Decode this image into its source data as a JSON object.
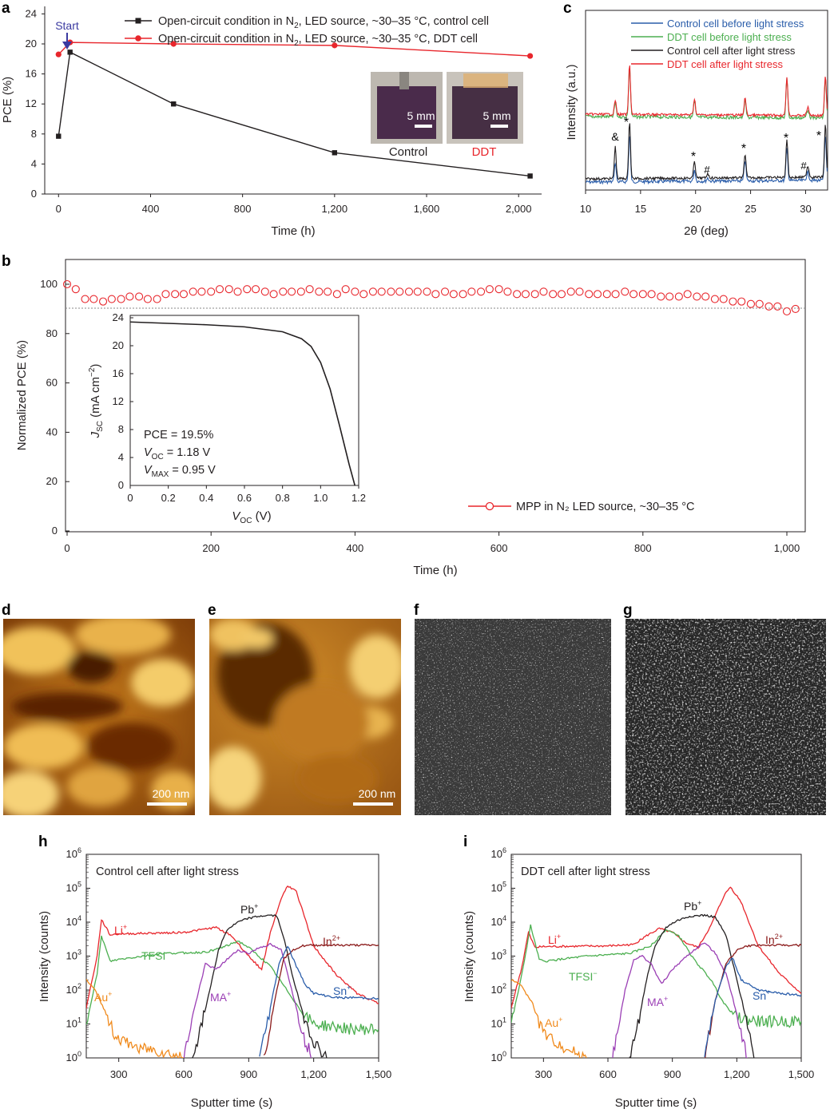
{
  "panel_labels": {
    "a": "a",
    "b": "b",
    "c": "c",
    "d": "d",
    "e": "e",
    "f": "f",
    "g": "g",
    "h": "h",
    "i": "i"
  },
  "colors": {
    "black": "#231f20",
    "red": "#e8262c",
    "blue": "#2a5daa",
    "green": "#4caf50",
    "purple": "#9b3fb5",
    "orange": "#f08a1c",
    "darkred": "#8b1a1a",
    "start": "#3b3aa0"
  },
  "panel_a": {
    "ylabel": "PCE (%)",
    "xlabel": "Time (h)",
    "xticks": [
      "0",
      "400",
      "800",
      "1,200",
      "1,600",
      "2,000"
    ],
    "yticks": [
      "0",
      "4",
      "8",
      "12",
      "16",
      "20",
      "24"
    ],
    "start_label": "Start",
    "legend": [
      {
        "prefix": "Open-circuit condition in N",
        "sub": "2",
        "suffix": ", LED source, ~30–35 °C, control cell"
      },
      {
        "prefix": "Open-circuit condition in N",
        "sub": "2",
        "suffix": ", LED source, ~30–35 °C, DDT cell"
      }
    ],
    "photos": [
      {
        "scale": "5 mm",
        "label": "Control"
      },
      {
        "scale": "5 mm",
        "label": "DDT"
      }
    ]
  },
  "panel_b": {
    "ylabel": "Normalized PCE (%)",
    "xlabel": "Time (h)",
    "xticks": [
      "0",
      "200",
      "400",
      "600",
      "800",
      "1,000"
    ],
    "yticks": [
      "0",
      "20",
      "40",
      "60",
      "80",
      "100"
    ],
    "legend": "MPP in N₂ LED source, ~30–35 °C",
    "inset": {
      "xticks": [
        "0",
        "0.2",
        "0.4",
        "0.6",
        "0.8",
        "1.0",
        "1.2"
      ],
      "yticks": [
        "0",
        "4",
        "8",
        "12",
        "16",
        "20",
        "24"
      ],
      "ylabel_main": "J",
      "ylabel_sub": "SC",
      "ylabel_unit": " (mA cm",
      "xlabel_main": "V",
      "xlabel_sub": "OC",
      "xlabel_unit": " (V)",
      "pce": "PCE = 19.5%",
      "voc_main": "V",
      "voc_sub": "OC",
      "voc_val": " = 1.18 V",
      "vmax_main": "V",
      "vmax_sub": "MAX",
      "vmax_val": " = 0.95 V"
    }
  },
  "panel_c": {
    "ylabel": "Intensity (a.u.)",
    "xlabel": "2θ (deg)",
    "xticks": [
      "10",
      "15",
      "20",
      "25",
      "30"
    ],
    "legend": [
      "Control cell before light stress",
      "DDT cell before light stress",
      "Control cell after light stress",
      "DDT cell after light stress"
    ],
    "markers": [
      "&",
      "*",
      "*",
      "#",
      "*",
      "*",
      "#",
      "*"
    ]
  },
  "afm": {
    "d_scale": "200 nm",
    "e_scale": "200 nm"
  },
  "panel_h": {
    "title": "Control cell after light stress",
    "ylabel": "Intensity (counts)",
    "xlabel": "Sputter time (s)",
    "xticks": [
      "300",
      "600",
      "900",
      "1,200",
      "1,500"
    ],
    "ions": {
      "li": "Li",
      "tfsi": "TFSI",
      "au": "Au",
      "ma": "MA",
      "pb": "Pb",
      "in": "In",
      "sn": "Sn"
    }
  },
  "panel_i": {
    "title": "DDT cell after light stress",
    "ylabel": "Intensity (counts)",
    "xlabel": "Sputter time (s)",
    "xticks": [
      "300",
      "600",
      "900",
      "1,200",
      "1,500"
    ],
    "ions": {
      "li": "Li",
      "tfsi": "TFSI",
      "au": "Au",
      "ma": "MA",
      "pb": "Pb",
      "in": "In",
      "sn": "Sn"
    }
  },
  "chart_data": [
    {
      "panel": "a",
      "type": "line",
      "xlabel": "Time (h)",
      "ylabel": "PCE (%)",
      "xlim": [
        -60,
        2100
      ],
      "ylim": [
        0,
        25
      ],
      "series": [
        {
          "name": "Open-circuit condition in N2, LED source, ~30–35 °C, control cell",
          "color": "#231f20",
          "marker": "square",
          "x": [
            0,
            50,
            500,
            1200,
            2050
          ],
          "y": [
            7.7,
            18.9,
            12.0,
            5.5,
            2.4
          ]
        },
        {
          "name": "Open-circuit condition in N2, LED source, ~30–35 °C, DDT cell",
          "color": "#e8262c",
          "marker": "circle",
          "x": [
            0,
            50,
            500,
            1200,
            2050
          ],
          "y": [
            18.6,
            20.2,
            20.0,
            19.8,
            18.4
          ]
        }
      ]
    },
    {
      "panel": "b",
      "type": "scatter",
      "xlabel": "Time (h)",
      "ylabel": "Normalized PCE (%)",
      "xlim": [
        -5,
        1050
      ],
      "ylim": [
        0,
        107
      ],
      "reference_line": 90,
      "series": [
        {
          "name": "MPP in N2 LED source, ~30–35 °C",
          "color": "#e8262c",
          "marker": "open-circle",
          "x": [
            0,
            12,
            25,
            37,
            50,
            62,
            75,
            87,
            100,
            112,
            125,
            137,
            150,
            162,
            175,
            187,
            200,
            212,
            225,
            237,
            250,
            262,
            275,
            287,
            300,
            312,
            325,
            337,
            350,
            362,
            375,
            387,
            400,
            412,
            425,
            437,
            450,
            462,
            475,
            487,
            500,
            512,
            525,
            537,
            550,
            562,
            575,
            587,
            600,
            612,
            625,
            637,
            650,
            662,
            675,
            687,
            700,
            712,
            725,
            737,
            750,
            762,
            775,
            787,
            800,
            812,
            825,
            837,
            850,
            862,
            875,
            887,
            900,
            912,
            925,
            937,
            950,
            962,
            975,
            987,
            1000,
            1012
          ],
          "y": [
            100,
            98,
            94,
            94,
            93,
            94,
            94,
            95,
            95,
            94,
            94,
            96,
            96,
            96,
            97,
            97,
            97,
            98,
            98,
            97,
            98,
            98,
            97,
            96,
            97,
            97,
            97,
            98,
            97,
            97,
            96,
            98,
            97,
            96,
            97,
            97,
            97,
            97,
            97,
            97,
            97,
            96,
            97,
            96,
            96,
            97,
            97,
            98,
            98,
            97,
            96,
            96,
            96,
            97,
            96,
            96,
            97,
            97,
            96,
            96,
            96,
            96,
            97,
            96,
            96,
            96,
            95,
            95,
            95,
            96,
            95,
            95,
            94,
            94,
            93,
            93,
            92,
            92,
            91,
            91,
            89,
            90
          ]
        }
      ],
      "inset": {
        "type": "line",
        "xlabel": "V_OC (V)",
        "ylabel": "J_SC (mA cm^-2)",
        "xlim": [
          0,
          1.2
        ],
        "ylim": [
          0,
          24
        ],
        "series": [
          {
            "name": "J-V",
            "x": [
              0,
              0.2,
              0.4,
              0.6,
              0.8,
              0.9,
              0.95,
              1.0,
              1.05,
              1.1,
              1.15,
              1.18
            ],
            "y": [
              23.4,
              23.2,
              23.0,
              22.7,
              22.0,
              21.0,
              19.9,
              17.6,
              13.8,
              8.5,
              3.0,
              0
            ]
          }
        ],
        "annotations": [
          "PCE = 19.5%",
          "V_OC = 1.18 V",
          "V_MAX = 0.95 V"
        ]
      }
    },
    {
      "panel": "c",
      "type": "line",
      "xlabel": "2θ (deg)",
      "ylabel": "Intensity (a.u.)",
      "xlim": [
        10,
        32
      ],
      "peaks": [
        12.7,
        14.0,
        19.9,
        21.1,
        24.5,
        28.3,
        30.2,
        31.8
      ],
      "series": [
        {
          "name": "Control cell before light stress",
          "color": "#2a5daa"
        },
        {
          "name": "DDT cell before light stress",
          "color": "#4caf50"
        },
        {
          "name": "Control cell after light stress",
          "color": "#231f20"
        },
        {
          "name": "DDT cell after light stress",
          "color": "#e8262c"
        }
      ]
    },
    {
      "panel": "h",
      "type": "line",
      "title": "Control cell after light stress",
      "xlabel": "Sputter time (s)",
      "ylabel": "Intensity (counts)",
      "xlim": [
        150,
        1500
      ],
      "ylim": [
        1,
        1000000
      ],
      "yscale": "log",
      "series": [
        {
          "name": "Li+",
          "color": "#e8262c",
          "x": [
            150,
            200,
            220,
            260,
            300,
            600,
            750,
            820,
            900,
            960,
            1000,
            1050,
            1080,
            1120,
            1200,
            1300,
            1400,
            1500
          ],
          "y": [
            30,
            1000,
            12000,
            4200,
            4500,
            5000,
            7000,
            4000,
            1000,
            400,
            5000,
            50000,
            120000,
            80000,
            2000,
            300,
            80,
            40
          ]
        },
        {
          "name": "TFSI-",
          "color": "#4caf50",
          "x": [
            150,
            200,
            220,
            260,
            300,
            500,
            700,
            800,
            850,
            900,
            1000,
            1100,
            1150,
            1200,
            1300,
            1400,
            1500
          ],
          "y": [
            10,
            300,
            4000,
            700,
            800,
            1200,
            1300,
            2000,
            2800,
            1800,
            500,
            60,
            20,
            10,
            8,
            7,
            7
          ]
        },
        {
          "name": "Pb+",
          "color": "#231f20",
          "x": [
            640,
            680,
            720,
            760,
            800,
            850,
            900,
            950,
            1000,
            1030,
            1060,
            1100,
            1150,
            1200,
            1260
          ],
          "y": [
            1,
            8,
            100,
            1500,
            6000,
            10000,
            13000,
            15000,
            16000,
            15000,
            4000,
            300,
            20,
            3,
            1
          ]
        },
        {
          "name": "MA+",
          "color": "#9b3fb5",
          "x": [
            600,
            650,
            700,
            750,
            800,
            850,
            900,
            950,
            1000,
            1050,
            1080,
            1120,
            1160,
            1200
          ],
          "y": [
            1,
            30,
            600,
            400,
            800,
            1500,
            1200,
            1800,
            2200,
            1500,
            300,
            30,
            3,
            1
          ]
        },
        {
          "name": "In2+",
          "color": "#8b1a1a",
          "x": [
            970,
            1000,
            1030,
            1060,
            1100,
            1150,
            1200,
            1300,
            1400,
            1500
          ],
          "y": [
            1,
            10,
            100,
            800,
            1500,
            2000,
            2100,
            2100,
            2100,
            2100
          ]
        },
        {
          "name": "Sn+",
          "color": "#2a5daa",
          "x": [
            950,
            1000,
            1040,
            1080,
            1120,
            1160,
            1200,
            1300,
            1400,
            1500
          ],
          "y": [
            1,
            30,
            600,
            2000,
            500,
            150,
            80,
            60,
            60,
            55
          ]
        },
        {
          "name": "Au+",
          "color": "#f08a1c",
          "x": [
            150,
            190,
            230,
            260,
            280,
            320,
            400,
            500,
            600
          ],
          "y": [
            200,
            100,
            30,
            10,
            5,
            3,
            2,
            1.5,
            1
          ]
        }
      ]
    },
    {
      "panel": "i",
      "type": "line",
      "title": "DDT cell after light stress",
      "xlabel": "Sputter time (s)",
      "ylabel": "Intensity (counts)",
      "xlim": [
        150,
        1500
      ],
      "ylim": [
        1,
        1000000
      ],
      "yscale": "log",
      "series": [
        {
          "name": "Li+",
          "color": "#e8262c",
          "x": [
            150,
            200,
            230,
            260,
            300,
            600,
            720,
            780,
            840,
            900,
            960,
            1020,
            1080,
            1140,
            1170,
            1220,
            1300,
            1400,
            1500
          ],
          "y": [
            30,
            500,
            5000,
            1800,
            1900,
            2000,
            2200,
            4000,
            6500,
            5000,
            2500,
            1800,
            8000,
            60000,
            110000,
            40000,
            2000,
            300,
            80
          ]
        },
        {
          "name": "TFSI-",
          "color": "#4caf50",
          "x": [
            150,
            200,
            240,
            280,
            300,
            500,
            700,
            800,
            870,
            930,
            1000,
            1080,
            1140,
            1200,
            1300,
            1500
          ],
          "y": [
            10,
            300,
            8000,
            800,
            700,
            1000,
            1200,
            2000,
            6000,
            4000,
            800,
            200,
            40,
            15,
            12,
            12
          ]
        },
        {
          "name": "Pb+",
          "color": "#231f20",
          "x": [
            700,
            740,
            780,
            820,
            870,
            920,
            980,
            1050,
            1100,
            1150,
            1200,
            1250,
            1280
          ],
          "y": [
            1,
            10,
            200,
            2000,
            7000,
            11000,
            15000,
            16000,
            14000,
            4000,
            200,
            10,
            1
          ]
        },
        {
          "name": "MA+",
          "color": "#9b3fb5",
          "x": [
            620,
            680,
            720,
            760,
            800,
            850,
            900,
            950,
            1000,
            1050,
            1100,
            1150,
            1200,
            1250
          ],
          "y": [
            1,
            100,
            800,
            1000,
            600,
            150,
            400,
            800,
            1500,
            2500,
            1200,
            300,
            20,
            1
          ]
        },
        {
          "name": "In2+",
          "color": "#8b1a1a",
          "x": [
            1050,
            1100,
            1150,
            1200,
            1250,
            1300,
            1400,
            1500
          ],
          "y": [
            1,
            50,
            600,
            1500,
            2000,
            2100,
            2100,
            2100
          ]
        },
        {
          "name": "Sn+",
          "color": "#2a5daa",
          "x": [
            1050,
            1100,
            1150,
            1180,
            1220,
            1300,
            1400,
            1500
          ],
          "y": [
            1,
            50,
            500,
            900,
            200,
            100,
            80,
            70
          ]
        },
        {
          "name": "Au+",
          "color": "#f08a1c",
          "x": [
            150,
            190,
            250,
            280,
            320,
            400,
            500
          ],
          "y": [
            200,
            150,
            40,
            10,
            4,
            2,
            1
          ]
        }
      ]
    }
  ]
}
